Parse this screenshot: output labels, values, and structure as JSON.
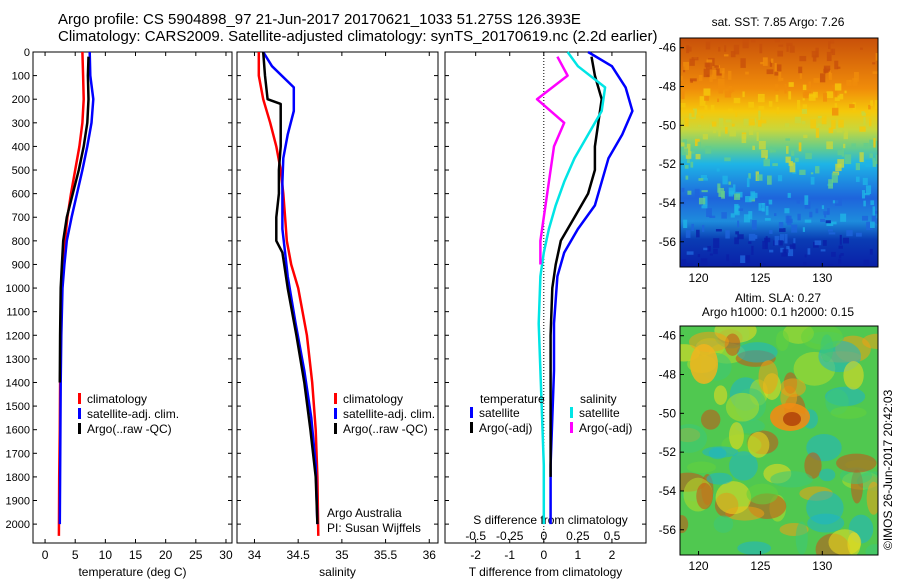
{
  "header": {
    "line1": "Argo profile: CS 5904898_97 21-Jun-2017 20170621_1033 51.275S 126.393E",
    "line2": "Climatology: CARS2009. Satellite-adjusted climatology: synTS_20170619.nc (2.2d earlier)"
  },
  "chart_data": [
    {
      "type": "line",
      "xlabel": "temperature (deg C)",
      "ylabel": "",
      "xlim": [
        -2,
        31
      ],
      "ylim": [
        2080,
        0
      ],
      "xticks": [
        0,
        5,
        10,
        15,
        20,
        25,
        30
      ],
      "yticks": [
        0,
        100,
        200,
        300,
        400,
        500,
        600,
        700,
        800,
        900,
        1000,
        1100,
        1200,
        1300,
        1400,
        1500,
        1600,
        1700,
        1800,
        1900,
        2000
      ],
      "legend": "right",
      "series": [
        {
          "name": "climatology",
          "color": "#ff0000",
          "x": [
            6.2,
            6.3,
            6.4,
            6.2,
            5.7,
            5.0,
            4.3,
            3.7,
            3.3,
            3.0,
            2.7,
            2.6,
            2.5,
            2.45,
            2.35,
            2.3
          ],
          "y": [
            0,
            100,
            200,
            300,
            400,
            500,
            600,
            700,
            800,
            900,
            1000,
            1200,
            1400,
            1600,
            1800,
            2050
          ]
        },
        {
          "name": "satellite-adj. clim.",
          "color": "#0000ff",
          "x": [
            7.4,
            7.5,
            8.0,
            7.7,
            7.0,
            6.2,
            5.3,
            4.4,
            3.6,
            3.2,
            2.9,
            2.7,
            2.6,
            2.55,
            2.5,
            2.45
          ],
          "y": [
            0,
            100,
            200,
            300,
            400,
            500,
            600,
            700,
            800,
            900,
            1000,
            1200,
            1400,
            1600,
            1800,
            2000
          ]
        },
        {
          "name": "Argo(..raw -QC)",
          "color": "#000000",
          "x": [
            7.2,
            7.1,
            7.2,
            7.0,
            6.4,
            5.6,
            4.6,
            3.6,
            3.0,
            2.8,
            2.6,
            2.5,
            2.45
          ],
          "y": [
            20,
            100,
            200,
            300,
            400,
            500,
            600,
            700,
            800,
            900,
            1000,
            1200,
            1400
          ]
        }
      ]
    },
    {
      "type": "line",
      "xlabel": "salinity",
      "ylabel": "",
      "xlim": [
        33.8,
        36.1
      ],
      "ylim": [
        2080,
        0
      ],
      "xticks": [
        34,
        34.5,
        35,
        35.5,
        36
      ],
      "legend": "right",
      "annotation": [
        "Argo Australia",
        "PI: Susan Wijffels"
      ],
      "series": [
        {
          "name": "climatology",
          "color": "#ff0000",
          "x": [
            34.05,
            34.05,
            34.1,
            34.18,
            34.25,
            34.3,
            34.33,
            34.35,
            34.37,
            34.42,
            34.5,
            34.6,
            34.66,
            34.7,
            34.72,
            34.73
          ],
          "y": [
            0,
            100,
            200,
            300,
            400,
            500,
            600,
            700,
            800,
            900,
            1000,
            1200,
            1400,
            1600,
            1800,
            2050
          ]
        },
        {
          "name": "satellite-adj. clim.",
          "color": "#0000ff",
          "x": [
            34.1,
            34.2,
            34.45,
            34.45,
            34.38,
            34.33,
            34.32,
            34.32,
            34.32,
            34.35,
            34.38,
            34.47,
            34.57,
            34.65,
            34.7,
            34.72
          ],
          "y": [
            0,
            60,
            150,
            250,
            350,
            450,
            550,
            650,
            750,
            850,
            950,
            1150,
            1350,
            1550,
            1750,
            2000
          ]
        },
        {
          "name": "Argo(..raw -QC)",
          "color": "#000000",
          "x": [
            34.1,
            34.12,
            34.15,
            34.3,
            34.3,
            34.3,
            34.28,
            34.28,
            34.25,
            34.25,
            34.32,
            34.34,
            34.38,
            34.48,
            34.57,
            34.64,
            34.7,
            34.72
          ],
          "y": [
            0,
            100,
            200,
            220,
            300,
            400,
            500,
            600,
            700,
            800,
            850,
            900,
            1000,
            1200,
            1400,
            1600,
            1800,
            2000
          ]
        }
      ]
    },
    {
      "type": "line",
      "xlabel": "T difference from climatology",
      "top_xlabel": "S difference from climatology",
      "ylabel": "",
      "xlim": [
        -2.9,
        3.0
      ],
      "ylim": [
        2080,
        0
      ],
      "xticks": [
        -2,
        -1,
        0,
        1,
        2
      ],
      "top_xticks": [
        "-0.5",
        "-0.25",
        "0",
        "0.25",
        "0.5"
      ],
      "legend": "bottom",
      "legend_headers": [
        "temperature",
        "salinity"
      ],
      "series": [
        {
          "name": "satellite",
          "group": "temperature",
          "color": "#0000ff",
          "x": [
            1.3,
            2.0,
            2.4,
            2.6,
            2.3,
            1.9,
            1.7,
            1.5,
            1.0,
            0.6,
            0.4,
            0.3,
            0.3,
            0.25,
            0.2,
            0.2
          ],
          "y": [
            0,
            60,
            150,
            250,
            350,
            450,
            550,
            650,
            750,
            850,
            950,
            1150,
            1350,
            1550,
            1750,
            2000
          ]
        },
        {
          "name": "Argo(-adj)",
          "group": "temperature",
          "color": "#000000",
          "x": [
            1.4,
            1.5,
            1.7,
            1.6,
            1.5,
            1.5,
            1.3,
            0.9,
            0.5,
            0.35,
            0.25,
            0.2,
            0.2,
            0.2,
            0.2
          ],
          "y": [
            20,
            100,
            200,
            300,
            400,
            500,
            600,
            700,
            800,
            900,
            1000,
            1200,
            1400,
            1600,
            1800
          ]
        },
        {
          "name": "satellite",
          "group": "salinity",
          "color": "#00e5e5",
          "x": [
            0.7,
            1.0,
            1.8,
            1.7,
            1.3,
            0.9,
            0.6,
            0.35,
            0.15,
            0.0,
            -0.1,
            -0.15,
            -0.1,
            -0.05,
            0.0,
            0.0
          ],
          "y": [
            0,
            60,
            150,
            250,
            350,
            450,
            550,
            650,
            750,
            850,
            950,
            1150,
            1350,
            1550,
            1750,
            2000
          ]
        },
        {
          "name": "Argo(-adj)",
          "group": "salinity",
          "color": "#ff00ff",
          "x": [
            0.4,
            0.7,
            -0.2,
            0.6,
            0.3,
            0.2,
            0.1,
            0.0,
            -0.1,
            -0.1
          ],
          "y": [
            20,
            100,
            200,
            300,
            400,
            500,
            600,
            700,
            800,
            900
          ]
        }
      ]
    },
    {
      "type": "heatmap",
      "title": "sat. SST: 7.85  Argo: 7.26",
      "xlim": [
        118.5,
        134.5
      ],
      "ylim": [
        -57.3,
        -45.5
      ],
      "xticks": [
        120,
        125,
        130
      ],
      "yticks": [
        -46,
        -48,
        -50,
        -52,
        -54,
        -56
      ],
      "colors": [
        "#0a1fa8",
        "#1e64dc",
        "#1eb4e6",
        "#64cd8c",
        "#c8d73c",
        "#f5c80a",
        "#f08c0a",
        "#c8500a"
      ]
    },
    {
      "type": "heatmap",
      "title": "Altim. SLA: 0.27",
      "subtitle": "Argo h1000: 0.1 h2000: 0.15",
      "xlim": [
        118.5,
        134.5
      ],
      "ylim": [
        -57.3,
        -45.5
      ],
      "xticks": [
        120,
        125,
        130
      ],
      "yticks": [
        -46,
        -48,
        -50,
        -52,
        -54,
        -56
      ],
      "colors": [
        "#1eb4c8",
        "#3cc878",
        "#64d23c",
        "#b4dc28",
        "#f0dc1e",
        "#f0a014",
        "#c85014"
      ]
    }
  ],
  "legend_temperature": {
    "items": [
      {
        "label": "climatology",
        "color": "#ff0000"
      },
      {
        "label": "satellite-adj. clim.",
        "color": "#0000ff"
      },
      {
        "label": "Argo(..raw -QC)",
        "color": "#000000"
      }
    ]
  },
  "legend_salinity": {
    "items": [
      {
        "label": "climatology",
        "color": "#ff0000"
      },
      {
        "label": "satellite-adj. clim.",
        "color": "#0000ff"
      },
      {
        "label": "Argo(..raw -QC)",
        "color": "#000000"
      }
    ]
  },
  "legend_diff": {
    "head_t": "temperature",
    "head_s": "salinity",
    "t_items": [
      {
        "label": "satellite",
        "color": "#0000ff"
      },
      {
        "label": "Argo(-adj)",
        "color": "#000000"
      }
    ],
    "s_items": [
      {
        "label": "satellite",
        "color": "#00e5e5"
      },
      {
        "label": "Argo(-adj)",
        "color": "#ff00ff"
      }
    ]
  },
  "credit": {
    "line1": "Argo Australia",
    "line2": "PI: Susan Wijffels"
  },
  "map_sst_title": "sat. SST: 7.85  Argo: 7.26",
  "map_sla_title1": "Altim. SLA: 0.27",
  "map_sla_title2": "Argo h1000: 0.1 h2000: 0.15",
  "stamp": "©IMOS 26-Jun-2017 20:42:03"
}
